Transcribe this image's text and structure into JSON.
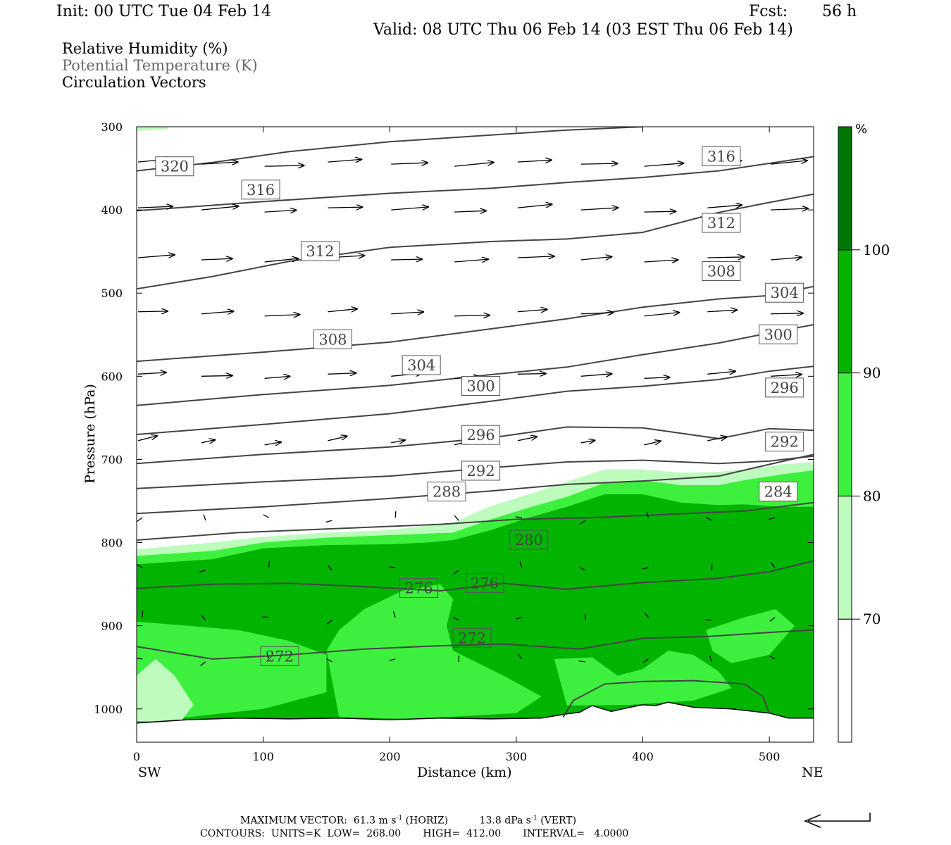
{
  "header": {
    "init": "Init: 00 UTC Tue 04 Feb 14",
    "fcst_label": "Fcst:",
    "fcst_value": "56 h",
    "valid": "Valid: 08 UTC Thu 06 Feb 14 (03 EST Thu 06 Feb 14)"
  },
  "legend": {
    "line1": "Relative Humidity (%)",
    "line2": "Potential Temperature (K)",
    "line3": "Circulation Vectors"
  },
  "footer": {
    "max_vector_label": "MAXIMUM VECTOR:",
    "max_vector_h": "61.3 m s",
    "max_vector_h_exp": "-1",
    "max_vector_h_unit": "(HORIZ)",
    "max_vector_v": "13.8 dPa s",
    "max_vector_v_exp": "-1",
    "max_vector_v_unit": "(VERT)",
    "contours_label": "CONTOURS:",
    "units": "UNITS=K",
    "low": "LOW=  268.00",
    "high": "HIGH=  412.00",
    "interval": "INTERVAL=   4.0000"
  },
  "colors": {
    "rh_70_80": "#bdfcbd",
    "rh_80_90": "#3ef03e",
    "rh_90_100": "#00b400",
    "rh_100": "#007800",
    "theta_line": "#444444"
  },
  "chart_data": {
    "type": "cross-section",
    "xlabel": "Distance (km)",
    "ylabel": "Pressure (hPa)",
    "xlim": [
      0,
      535
    ],
    "ylim": [
      1040,
      300
    ],
    "x_ticks": [
      0,
      100,
      200,
      300,
      400,
      500
    ],
    "y_ticks": [
      300,
      400,
      500,
      600,
      700,
      800,
      900,
      1000
    ],
    "x_end_labels": {
      "left": "SW",
      "right": "NE"
    },
    "colorbar": {
      "unit": "%",
      "levels": [
        70,
        80,
        90,
        100
      ],
      "tick_labels": [
        "70",
        "80",
        "90",
        "100"
      ]
    },
    "rh_fill": [
      {
        "level": 70,
        "top": [
          [
            0,
            300
          ],
          [
            15,
            299
          ],
          [
            25,
            302
          ]
        ],
        "note": ""
      },
      {
        "level": 70,
        "top": [
          [
            0,
            808
          ],
          [
            60,
            800
          ],
          [
            100,
            793
          ],
          [
            150,
            788
          ],
          [
            200,
            785
          ],
          [
            250,
            776
          ],
          [
            280,
            756
          ],
          [
            310,
            742
          ],
          [
            340,
            727
          ],
          [
            370,
            712
          ],
          [
            400,
            712
          ],
          [
            430,
            716
          ],
          [
            460,
            715
          ],
          [
            480,
            712
          ],
          [
            510,
            706
          ],
          [
            535,
            703
          ]
        ]
      },
      {
        "level": 80,
        "top": [
          [
            0,
            816
          ],
          [
            60,
            810
          ],
          [
            100,
            800
          ],
          [
            150,
            794
          ],
          [
            200,
            791
          ],
          [
            250,
            788
          ],
          [
            280,
            772
          ],
          [
            310,
            758
          ],
          [
            340,
            745
          ],
          [
            370,
            728
          ],
          [
            400,
            725
          ],
          [
            430,
            731
          ],
          [
            460,
            731
          ],
          [
            480,
            725
          ],
          [
            510,
            718
          ],
          [
            535,
            713
          ]
        ]
      },
      {
        "level": 90,
        "top": [
          [
            0,
            826
          ],
          [
            60,
            820
          ],
          [
            100,
            807
          ],
          [
            150,
            803
          ],
          [
            200,
            802
          ],
          [
            230,
            800
          ],
          [
            250,
            797
          ],
          [
            280,
            785
          ],
          [
            310,
            770
          ],
          [
            340,
            757
          ],
          [
            370,
            742
          ],
          [
            400,
            742
          ],
          [
            430,
            752
          ],
          [
            460,
            755
          ],
          [
            480,
            754
          ],
          [
            510,
            757
          ],
          [
            535,
            757
          ]
        ]
      }
    ],
    "theta_contours": [
      {
        "value": 272,
        "points": [
          [
            0,
            925
          ],
          [
            60,
            940
          ],
          [
            120,
            935
          ],
          [
            180,
            928
          ],
          [
            240,
            924
          ],
          [
            290,
            922
          ],
          [
            350,
            928
          ],
          [
            400,
            915
          ],
          [
            450,
            913
          ],
          [
            500,
            908
          ],
          [
            535,
            905
          ]
        ]
      },
      {
        "value": 276,
        "points": [
          [
            0,
            855
          ],
          [
            60,
            850
          ],
          [
            120,
            849
          ],
          [
            180,
            853
          ],
          [
            240,
            858
          ],
          [
            290,
            849
          ],
          [
            340,
            856
          ],
          [
            400,
            848
          ],
          [
            460,
            843
          ],
          [
            500,
            835
          ],
          [
            535,
            822
          ]
        ]
      },
      {
        "value": 280,
        "points": [
          [
            0,
            797
          ],
          [
            80,
            788
          ],
          [
            160,
            783
          ],
          [
            240,
            778
          ],
          [
            300,
            772
          ],
          [
            360,
            770
          ],
          [
            420,
            766
          ],
          [
            480,
            762
          ],
          [
            535,
            752
          ]
        ]
      },
      {
        "value": 284,
        "points": [
          [
            0,
            765
          ],
          [
            100,
            757
          ],
          [
            200,
            747
          ],
          [
            280,
            738
          ],
          [
            340,
            730
          ],
          [
            400,
            726
          ],
          [
            460,
            720
          ],
          [
            500,
            706
          ],
          [
            535,
            694
          ]
        ]
      },
      {
        "value": 288,
        "points": [
          [
            0,
            735
          ],
          [
            100,
            727
          ],
          [
            200,
            720
          ],
          [
            280,
            710
          ],
          [
            340,
            703
          ],
          [
            400,
            701
          ],
          [
            460,
            705
          ],
          [
            500,
            702
          ],
          [
            535,
            696
          ]
        ]
      },
      {
        "value": 292,
        "points": [
          [
            0,
            705
          ],
          [
            100,
            694
          ],
          [
            200,
            685
          ],
          [
            280,
            674
          ],
          [
            340,
            661
          ],
          [
            400,
            662
          ],
          [
            460,
            675
          ],
          [
            500,
            663
          ],
          [
            535,
            665
          ]
        ]
      },
      {
        "value": 296,
        "points": [
          [
            0,
            670
          ],
          [
            100,
            658
          ],
          [
            200,
            645
          ],
          [
            280,
            630
          ],
          [
            340,
            618
          ],
          [
            400,
            612
          ],
          [
            460,
            604
          ],
          [
            500,
            594
          ],
          [
            535,
            588
          ]
        ]
      },
      {
        "value": 300,
        "points": [
          [
            0,
            635
          ],
          [
            100,
            622
          ],
          [
            200,
            611
          ],
          [
            280,
            598
          ],
          [
            340,
            589
          ],
          [
            400,
            574
          ],
          [
            460,
            560
          ],
          [
            500,
            548
          ],
          [
            535,
            538
          ]
        ]
      },
      {
        "value": 304,
        "points": [
          [
            0,
            582
          ],
          [
            100,
            571
          ],
          [
            200,
            559
          ],
          [
            280,
            543
          ],
          [
            340,
            531
          ],
          [
            400,
            517
          ],
          [
            460,
            507
          ],
          [
            500,
            503
          ],
          [
            535,
            492
          ]
        ]
      },
      {
        "value": 308,
        "points": [
          [
            0,
            495
          ],
          [
            60,
            480
          ],
          [
            120,
            462
          ],
          [
            200,
            445
          ],
          [
            280,
            438
          ],
          [
            340,
            435
          ],
          [
            400,
            427
          ],
          [
            460,
            403
          ],
          [
            500,
            391
          ],
          [
            535,
            381
          ]
        ]
      },
      {
        "value": 312,
        "points": [
          [
            0,
            401
          ],
          [
            100,
            390
          ],
          [
            200,
            380
          ],
          [
            280,
            374
          ],
          [
            340,
            367
          ],
          [
            400,
            361
          ],
          [
            460,
            353
          ],
          [
            500,
            344
          ],
          [
            535,
            336
          ]
        ]
      },
      {
        "value": 316,
        "points": [
          [
            0,
            353
          ],
          [
            60,
            343
          ],
          [
            120,
            330
          ],
          [
            200,
            318
          ],
          [
            280,
            310
          ],
          [
            340,
            304
          ],
          [
            400,
            300
          ]
        ]
      }
    ],
    "contour_labels": [
      {
        "value": "320",
        "x": 30,
        "p": 348
      },
      {
        "value": "316",
        "x": 98,
        "p": 376
      },
      {
        "value": "316",
        "x": 462,
        "p": 336
      },
      {
        "value": "312",
        "x": 145,
        "p": 450
      },
      {
        "value": "312",
        "x": 462,
        "p": 416
      },
      {
        "value": "308",
        "x": 155,
        "p": 556
      },
      {
        "value": "308",
        "x": 462,
        "p": 474
      },
      {
        "value": "304",
        "x": 225,
        "p": 587
      },
      {
        "value": "304",
        "x": 512,
        "p": 500
      },
      {
        "value": "300",
        "x": 272,
        "p": 612
      },
      {
        "value": "300",
        "x": 507,
        "p": 550
      },
      {
        "value": "296",
        "x": 272,
        "p": 671
      },
      {
        "value": "296",
        "x": 512,
        "p": 614
      },
      {
        "value": "292",
        "x": 272,
        "p": 714
      },
      {
        "value": "292",
        "x": 512,
        "p": 679
      },
      {
        "value": "288",
        "x": 245,
        "p": 739
      },
      {
        "value": "284",
        "x": 507,
        "p": 739
      },
      {
        "value": "280",
        "x": 310,
        "p": 797
      },
      {
        "value": "276",
        "x": 223,
        "p": 855
      },
      {
        "value": "276",
        "x": 275,
        "p": 849
      },
      {
        "value": "272",
        "x": 113,
        "p": 937
      },
      {
        "value": "272",
        "x": 265,
        "p": 915
      }
    ]
  }
}
